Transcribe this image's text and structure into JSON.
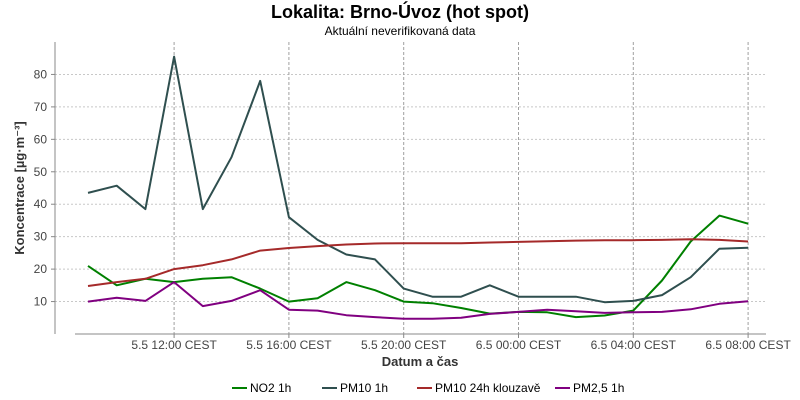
{
  "chart_data": {
    "type": "line",
    "title": "Lokalita: Brno-Úvoz (hot spot)",
    "subtitle": "Aktuální neverifikovaná data",
    "xlabel": "Datum a čas",
    "ylabel": "Koncentrace [µg·m⁻³]",
    "ylim": [
      0,
      90
    ],
    "y_ticks": [
      10,
      20,
      30,
      40,
      50,
      60,
      70,
      80
    ],
    "x_tick_labels": [
      "5.5 12:00 CEST",
      "5.5 16:00 CEST",
      "5.5 20:00 CEST",
      "6.5 00:00 CEST",
      "6.5 04:00 CEST",
      "6.5 08:00 CEST"
    ],
    "x": [
      "5.5 09:00",
      "5.5 10:00",
      "5.5 11:00",
      "5.5 12:00",
      "5.5 13:00",
      "5.5 14:00",
      "5.5 15:00",
      "5.5 16:00",
      "5.5 17:00",
      "5.5 18:00",
      "5.5 19:00",
      "5.5 20:00",
      "5.5 21:00",
      "5.5 22:00",
      "5.5 23:00",
      "6.5 00:00",
      "6.5 01:00",
      "6.5 02:00",
      "6.5 03:00",
      "6.5 04:00",
      "6.5 05:00",
      "6.5 06:00",
      "6.5 07:00",
      "6.5 08:00"
    ],
    "grid": true,
    "legend_position": "bottom",
    "series": [
      {
        "name": "NO2 1h",
        "color": "#008000",
        "values": [
          21,
          15,
          17,
          16,
          17,
          17.5,
          14,
          10,
          11,
          16,
          13.5,
          10,
          9.5,
          8,
          6.3,
          6.8,
          6.7,
          5.2,
          5.7,
          7.2,
          16.5,
          28.5,
          36.5,
          34
        ]
      },
      {
        "name": "PM10 1h",
        "color": "#2f4f4f",
        "values": [
          43.5,
          45.7,
          38.5,
          85.5,
          38.5,
          54.5,
          78,
          36,
          29,
          24.5,
          23,
          14,
          11.5,
          11.5,
          15,
          11.5,
          11.5,
          11.5,
          9.8,
          10.2,
          12,
          17.5,
          26.3,
          26.6
        ]
      },
      {
        "name": "PM10 24h klouzavě",
        "color": "#a52a2a",
        "values": [
          14.8,
          16,
          17,
          20,
          21.2,
          23,
          25.7,
          26.5,
          27.1,
          27.6,
          27.9,
          28,
          28,
          28,
          28.2,
          28.4,
          28.6,
          28.8,
          28.9,
          28.9,
          29,
          29.2,
          29,
          28.5
        ]
      },
      {
        "name": "PM2,5 1h",
        "color": "#800080",
        "values": [
          10,
          11.2,
          10.2,
          16,
          8.6,
          10.2,
          13.5,
          7.5,
          7.2,
          5.8,
          5.2,
          4.7,
          4.7,
          5,
          6.2,
          6.8,
          7.5,
          7,
          6.5,
          6.7,
          6.8,
          7.6,
          9.3,
          10.1
        ]
      }
    ]
  }
}
